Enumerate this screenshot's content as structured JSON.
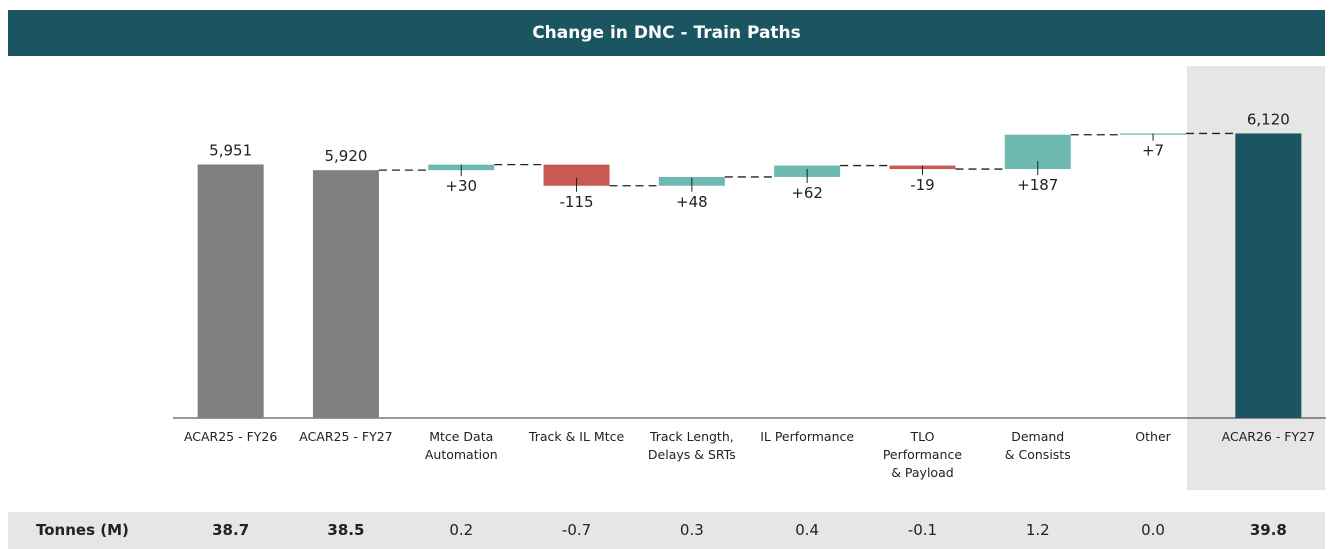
{
  "chart_data": {
    "type": "waterfall",
    "title": "Change in DNC - Train Paths",
    "categories": [
      "ACAR25 - FY26",
      "ACAR25 - FY27",
      "Mtce Data\nAutomation",
      "Track & IL Mtce",
      "Track Length,\nDelays & SRTs",
      "IL Performance",
      "TLO\nPerformance\n& Payload",
      "Demand\n& Consists",
      "Other",
      "ACAR26 - FY27"
    ],
    "values": [
      5951,
      5920,
      30,
      -115,
      48,
      62,
      -19,
      187,
      7,
      6120
    ],
    "value_labels": [
      "5,951",
      "5,920",
      "+30",
      "-115",
      "+48",
      "+62",
      "-19",
      "+187",
      "+7",
      "6,120"
    ],
    "measure": [
      "absolute",
      "absolute",
      "relative",
      "relative",
      "relative",
      "relative",
      "relative",
      "relative",
      "relative",
      "total"
    ],
    "colors": {
      "absolute": "#808080",
      "increase": "#6db9b1",
      "decrease": "#c75b54",
      "total": "#1b5561"
    },
    "ylim": [
      4570,
      6520
    ]
  },
  "table": {
    "label": "Tonnes (M)",
    "cells": [
      "38.7",
      "38.5",
      "0.2",
      "-0.7",
      "0.3",
      "0.4",
      "-0.1",
      "1.2",
      "0.0",
      "39.8"
    ]
  }
}
